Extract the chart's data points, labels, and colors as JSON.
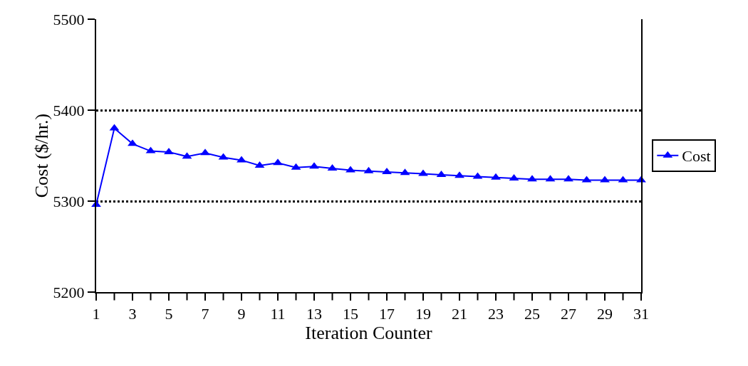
{
  "chart_data": {
    "type": "line",
    "xlabel": "Iteration Counter",
    "ylabel": "Cost ($/hr.)",
    "x": [
      1,
      2,
      3,
      4,
      5,
      6,
      7,
      8,
      9,
      10,
      11,
      12,
      13,
      14,
      15,
      16,
      17,
      18,
      19,
      20,
      21,
      22,
      23,
      24,
      25,
      26,
      27,
      28,
      29,
      30,
      31
    ],
    "series": [
      {
        "name": "Cost",
        "color": "#0000ff",
        "values": [
          5296,
          5380,
          5363,
          5355,
          5354,
          5349,
          5353,
          5348,
          5345,
          5339,
          5342,
          5337,
          5338,
          5336,
          5334,
          5333,
          5332,
          5331,
          5330,
          5329,
          5328,
          5327,
          5326,
          5325,
          5324,
          5324,
          5324,
          5323,
          5323,
          5323,
          5323
        ]
      }
    ],
    "xlim": [
      1,
      31
    ],
    "xticks": [
      1,
      3,
      5,
      7,
      9,
      11,
      13,
      15,
      17,
      19,
      21,
      23,
      25,
      27,
      29,
      31
    ],
    "ylim": [
      5200,
      5500
    ],
    "yticks": [
      5200,
      5300,
      5400,
      5500
    ],
    "grid": "y",
    "legend": "right",
    "marker": "triangle",
    "line_style": "solid"
  }
}
